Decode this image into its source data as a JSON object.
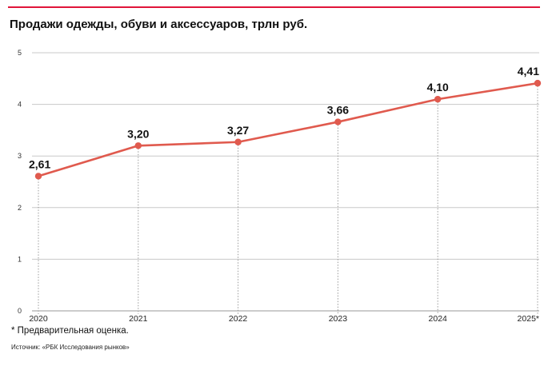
{
  "colors": {
    "accent": "#e0153a",
    "series": "#e05a4e",
    "grid": "#c8c8c8"
  },
  "title": "Продажи одежды, обуви и аксессуаров, трлн руб.",
  "footnote": "* Предварительная оценка.",
  "source": "Источник: «РБК Исследования рынков»",
  "chart_data": {
    "type": "line",
    "title": "Продажи одежды, обуви и аксессуаров, трлн руб.",
    "categories": [
      "2020",
      "2021",
      "2022",
      "2023",
      "2024",
      "2025*"
    ],
    "series": [
      {
        "values": [
          2.61,
          3.2,
          3.27,
          3.66,
          4.1,
          4.41
        ],
        "labels": [
          "2,61",
          "3,20",
          "3,27",
          "3,66",
          "4,10",
          "4,41"
        ]
      }
    ],
    "y_ticks": [
      "0",
      "1",
      "2",
      "3",
      "4",
      "5"
    ],
    "ylim": [
      0,
      5
    ],
    "xlabel": "",
    "ylabel": "",
    "grid": true,
    "legend": "none"
  }
}
